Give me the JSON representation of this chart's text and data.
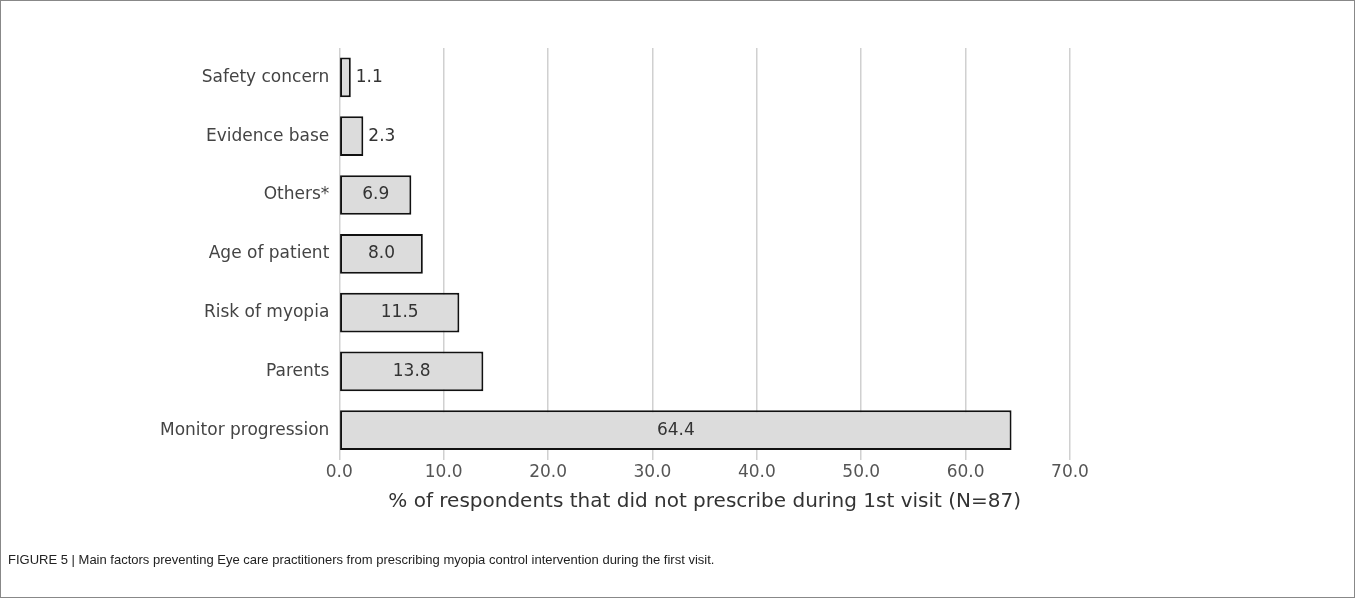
{
  "chart_data": {
    "type": "bar",
    "orientation": "horizontal",
    "xlabel": "% of respondents that did not prescribe during 1st visit (N=87)",
    "categories": [
      "Safety concern",
      "Evidence base",
      "Others*",
      "Age of patient",
      "Risk of myopia",
      "Parents",
      "Monitor progression"
    ],
    "values": [
      1.1,
      2.3,
      6.9,
      8.0,
      11.5,
      13.8,
      64.4
    ],
    "value_labels": [
      "1.1",
      "2.3",
      "6.9",
      "8.0",
      "11.5",
      "13.8",
      "64.4"
    ],
    "color": "#dcdcdc",
    "xlim": [
      0,
      70
    ],
    "xticks": [
      {
        "value": 0,
        "label": "0.0"
      },
      {
        "value": 10,
        "label": "10.0"
      },
      {
        "value": 20,
        "label": "20.0"
      },
      {
        "value": 30,
        "label": "30.0"
      },
      {
        "value": 40,
        "label": "40.0"
      },
      {
        "value": 50,
        "label": "50.0"
      },
      {
        "value": 60,
        "label": "60.0"
      },
      {
        "value": 70,
        "label": "70.0"
      }
    ],
    "grid": "x",
    "legend": false,
    "annotations": [
      "FIGURE 5 | Main factors preventing Eye care practitioners from prescribing myopia control intervention during the first visit."
    ]
  }
}
